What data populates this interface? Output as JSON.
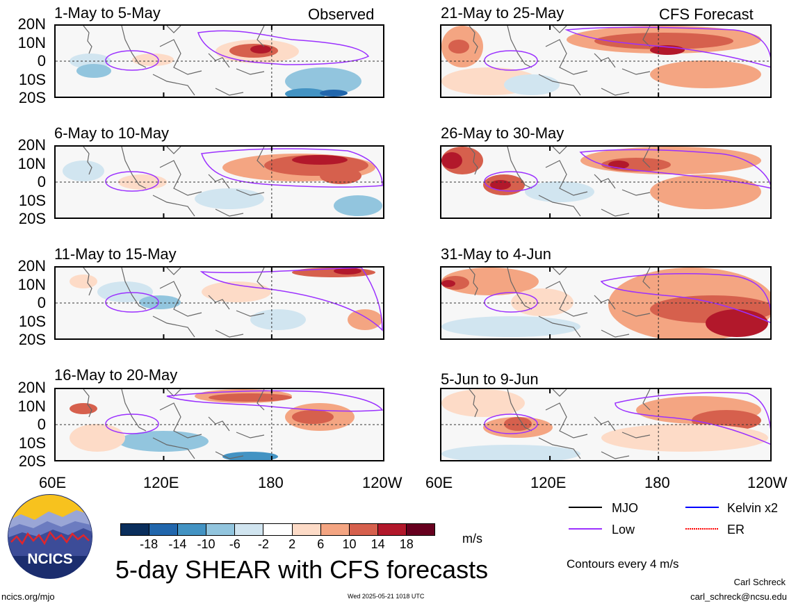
{
  "panels": [
    {
      "title": "1-May to 5-May",
      "tag": "Observed"
    },
    {
      "title": "6-May to 10-May",
      "tag": ""
    },
    {
      "title": "11-May to 15-May",
      "tag": ""
    },
    {
      "title": "16-May to 20-May",
      "tag": ""
    },
    {
      "title": "21-May to 25-May",
      "tag": "CFS Forecast"
    },
    {
      "title": "26-May to 30-May",
      "tag": ""
    },
    {
      "title": "31-May to 4-Jun",
      "tag": ""
    },
    {
      "title": "5-Jun to 9-Jun",
      "tag": ""
    }
  ],
  "lat_labels": [
    "20N",
    "10N",
    "0",
    "10S",
    "20S"
  ],
  "lon_labels": [
    "60E",
    "120E",
    "180",
    "120W"
  ],
  "lon_labels_right": [
    "60E",
    "120E",
    "180",
    "120W"
  ],
  "colorbar": {
    "labels": [
      "-18",
      "-14",
      "-10",
      "-6",
      "-2",
      "2",
      "6",
      "10",
      "14",
      "18"
    ],
    "colors": [
      "#0a2e5c",
      "#2166ac",
      "#4393c3",
      "#92c5de",
      "#d1e5f0",
      "#ffffff",
      "#fddbc7",
      "#f4a582",
      "#d6604d",
      "#b2182b",
      "#67001f"
    ],
    "unit": "m/s"
  },
  "legend": {
    "items": [
      {
        "label": "MJO",
        "color": "#000000"
      },
      {
        "label": "Kelvin x2",
        "color": "#0000ff"
      },
      {
        "label": "Low",
        "color": "#9b30ff"
      },
      {
        "label": "ER",
        "color": "#ff0000"
      }
    ],
    "contour_note": "Contours every 4 m/s"
  },
  "logo": {
    "text": "NCICS"
  },
  "main_title": "5-day SHEAR with CFS forecasts",
  "footer": {
    "url": "ncics.org/mjo",
    "date": "Wed 2025-05-21 1018 UTC",
    "author": "Carl Schreck",
    "email": "carl_schreck@ncsu.edu"
  }
}
